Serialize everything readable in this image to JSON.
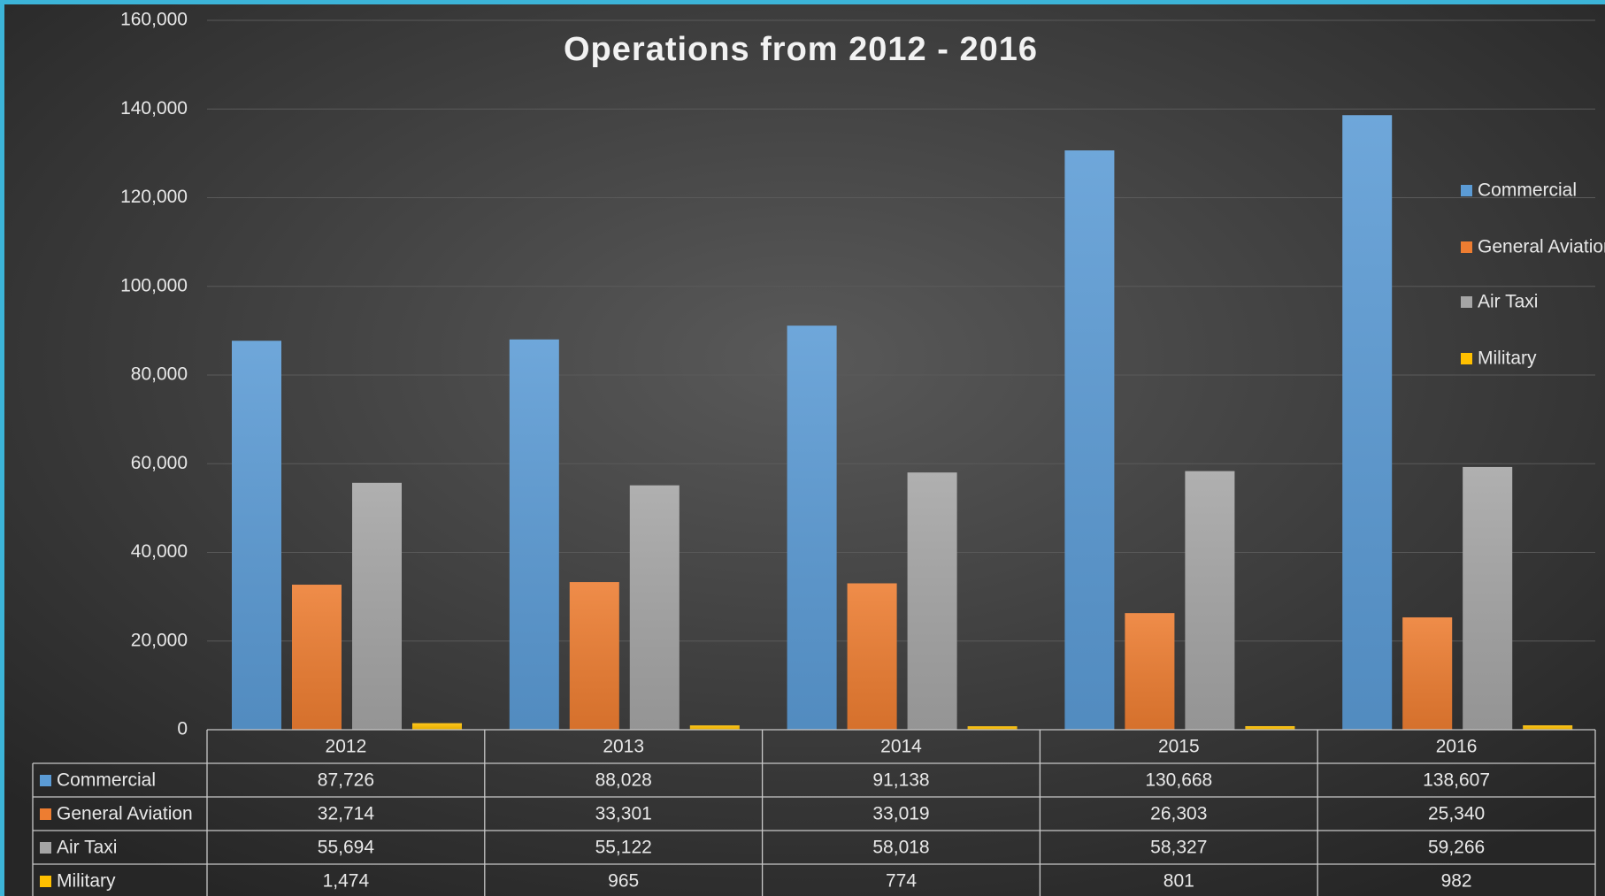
{
  "chart_data": {
    "type": "bar",
    "title": "Operations from 2012 - 2016",
    "categories": [
      "2012",
      "2013",
      "2014",
      "2015",
      "2016"
    ],
    "series": [
      {
        "name": "Commercial",
        "color": "#5b9bd5",
        "values": [
          87726,
          88028,
          91138,
          130668,
          138607
        ],
        "value_labels": [
          "87,726",
          "88,028",
          "91,138",
          "130,668",
          "138,607"
        ]
      },
      {
        "name": "General Aviation",
        "color": "#ed7d31",
        "values": [
          32714,
          33301,
          33019,
          26303,
          25340
        ],
        "value_labels": [
          "32,714",
          "33,301",
          "33,019",
          "26,303",
          "25,340"
        ]
      },
      {
        "name": "Air Taxi",
        "color": "#a5a5a5",
        "values": [
          55694,
          55122,
          58018,
          58327,
          59266
        ],
        "value_labels": [
          "55,694",
          "55,122",
          "58,018",
          "58,327",
          "59,266"
        ]
      },
      {
        "name": "Military",
        "color": "#ffc000",
        "values": [
          1474,
          965,
          774,
          801,
          982
        ],
        "value_labels": [
          "1,474",
          "965",
          "774",
          "801",
          "982"
        ]
      }
    ],
    "ylim": [
      0,
      160000
    ],
    "yticks": [
      0,
      {
        "value": 20000,
        "label": "20,000"
      },
      {
        "value": 40000,
        "label": "40,000"
      },
      {
        "value": 60000,
        "label": "60,000"
      },
      {
        "value": 80000,
        "label": "80,000"
      },
      {
        "value": 100000,
        "label": "100,000"
      },
      {
        "value": 120000,
        "label": "120,000"
      },
      {
        "value": 140000,
        "label": "140,000"
      },
      {
        "value": 160000,
        "label": "160,000"
      }
    ],
    "grid": true,
    "legend": "right"
  }
}
